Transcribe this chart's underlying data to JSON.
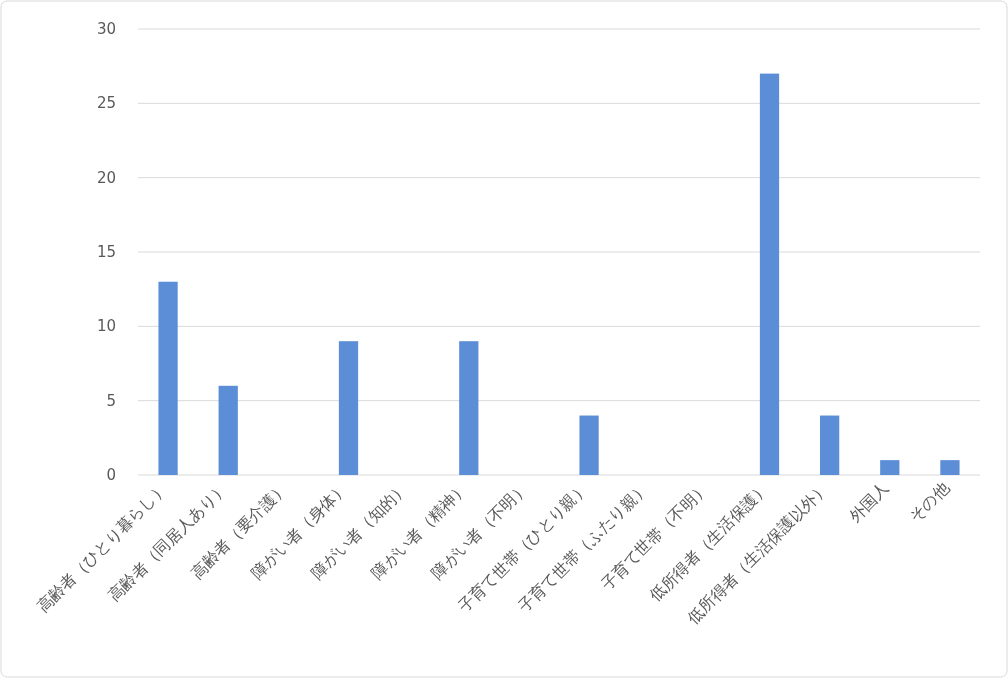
{
  "chart_data": {
    "type": "bar",
    "categories": [
      "高齢者（ひとり暮らし）",
      "高齢者（同居人あり）",
      "高齢者（要介護）",
      "障がい者（身体）",
      "障がい者（知的）",
      "障がい者（精神）",
      "障がい者（不明）",
      "子育て世帯（ひとり親）",
      "子育て世帯（ふたり親）",
      "子育て世帯（不明）",
      "低所得者（生活保護）",
      "低所得者（生活保護以外）",
      "外国人",
      "その他"
    ],
    "values": [
      13,
      6,
      0,
      9,
      0,
      9,
      0,
      4,
      0,
      0,
      27,
      4,
      1,
      1
    ],
    "color": "#5b8ed6",
    "ylim": [
      0,
      30
    ],
    "yticks": [
      0,
      5,
      10,
      15,
      20,
      25,
      30
    ],
    "grid": "y"
  }
}
